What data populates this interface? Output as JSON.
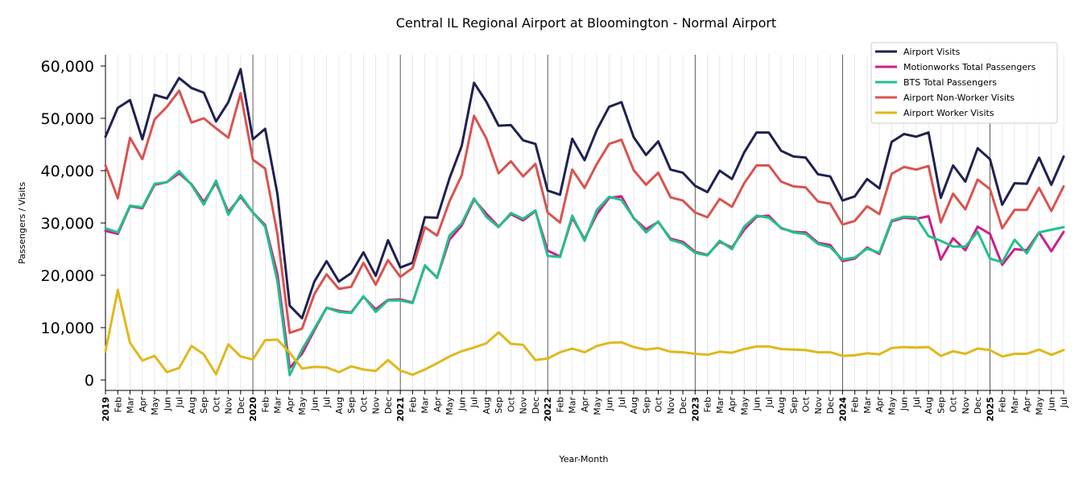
{
  "chart_data": {
    "type": "line",
    "title": "Central IL Regional Airport at Bloomington - Normal Airport",
    "xlabel": "Year-Month",
    "ylabel": "Passengers / Visits",
    "ylim": [
      -2000,
      62000
    ],
    "yticks": [
      0,
      10000,
      20000,
      30000,
      40000,
      50000,
      60000
    ],
    "ytick_labels": [
      "0",
      "10,000",
      "20,000",
      "30,000",
      "40,000",
      "50,000",
      "60,000"
    ],
    "legend_position": "top-right",
    "grid": "vertical monthly gridlines, darker lines at year starts",
    "categories": [
      "2019",
      "Feb",
      "Mar",
      "Apr",
      "May",
      "Jun",
      "Jul",
      "Aug",
      "Sep",
      "Oct",
      "Nov",
      "Dec",
      "2020",
      "Feb",
      "Mar",
      "Apr",
      "May",
      "Jun",
      "Jul",
      "Aug",
      "Sep",
      "Oct",
      "Nov",
      "Dec",
      "2021",
      "Feb",
      "Mar",
      "Apr",
      "May",
      "Jun",
      "Jul",
      "Aug",
      "Sep",
      "Oct",
      "Nov",
      "Dec",
      "2022",
      "Feb",
      "Mar",
      "Apr",
      "May",
      "Jun",
      "Jul",
      "Aug",
      "Sep",
      "Oct",
      "Nov",
      "Dec",
      "2023",
      "Feb",
      "Mar",
      "Apr",
      "May",
      "Jun",
      "Jul",
      "Aug",
      "Sep",
      "Oct",
      "Nov",
      "Dec",
      "2024",
      "Feb",
      "Mar",
      "Apr",
      "May",
      "Jun",
      "Jul",
      "Aug",
      "Sep",
      "Oct",
      "Nov",
      "Dec",
      "2025",
      "Feb",
      "Mar",
      "Apr",
      "May",
      "Jun",
      "Jul"
    ],
    "series": [
      {
        "name": "Airport Visits",
        "color": "#1f2150",
        "values": [
          46500,
          52000,
          53500,
          46000,
          54500,
          53800,
          57700,
          55800,
          54900,
          49400,
          53100,
          59400,
          46000,
          48000,
          35500,
          14200,
          11800,
          18800,
          22700,
          18800,
          20400,
          24400,
          19900,
          26700,
          21500,
          22400,
          31100,
          31000,
          38500,
          44700,
          56800,
          53200,
          48600,
          48700,
          45800,
          45100,
          36200,
          35400,
          46100,
          42000,
          47800,
          52200,
          53100,
          46400,
          43000,
          45600,
          40200,
          39600,
          37100,
          35900,
          40000,
          38400,
          43500,
          47300,
          47300,
          43800,
          42700,
          42500,
          39300,
          38900,
          34300,
          35100,
          38400,
          36600,
          45500,
          47000,
          46500,
          47300,
          34800,
          41000,
          37900,
          44300,
          42200,
          33500,
          37600,
          37500,
          42500,
          37300,
          42700
        ]
      },
      {
        "name": "Motionworks Total Passengers",
        "color": "#cc1f8a",
        "values": [
          28500,
          27900,
          33200,
          32800,
          37300,
          37800,
          39500,
          37400,
          34000,
          37700,
          32100,
          35000,
          32000,
          29600,
          20200,
          2300,
          5000,
          9500,
          13800,
          13200,
          12900,
          15900,
          13500,
          15300,
          15400,
          14800,
          21800,
          19600,
          26800,
          29500,
          34500,
          31800,
          29300,
          31700,
          30500,
          32300,
          24700,
          23600,
          31000,
          26900,
          31700,
          34800,
          35100,
          30900,
          28800,
          30200,
          27000,
          26400,
          24500,
          23900,
          26400,
          25300,
          28700,
          31200,
          31400,
          29000,
          28300,
          28200,
          26200,
          25800,
          22700,
          23200,
          25300,
          24100,
          30300,
          31000,
          30800,
          31300,
          23000,
          27100,
          24800,
          29300,
          27900,
          22000,
          25000,
          24800,
          28200,
          24600,
          28300
        ]
      },
      {
        "name": "BTS Total Passengers",
        "color": "#22c08a",
        "values": [
          29000,
          28200,
          33300,
          33000,
          37500,
          37800,
          39900,
          37300,
          33500,
          38100,
          31600,
          35300,
          32000,
          29300,
          18800,
          900,
          5800,
          9800,
          13800,
          13000,
          12800,
          16000,
          13000,
          15200,
          15200,
          14700,
          21900,
          19500,
          27600,
          29900,
          34700,
          31200,
          29200,
          31900,
          30800,
          32400,
          23700,
          23500,
          31400,
          26600,
          32500,
          35000,
          34400,
          31000,
          28200,
          30300,
          26800,
          26100,
          24300,
          23800,
          26600,
          25000,
          29300,
          31400,
          31000,
          29100,
          28200,
          27900,
          26000,
          25400,
          23000,
          23400,
          25100,
          24300,
          30500,
          31200,
          31100,
          27500,
          26600,
          25500,
          25500,
          28300,
          23200,
          22500,
          26800,
          24200,
          28200,
          28700,
          29200
        ]
      },
      {
        "name": "Airport Non-Worker Visits",
        "color": "#d9534f",
        "values": [
          41000,
          34700,
          46300,
          42200,
          49800,
          52200,
          55300,
          49200,
          50000,
          48100,
          46300,
          54800,
          42100,
          40400,
          27800,
          9000,
          9800,
          16400,
          20200,
          17400,
          17800,
          22400,
          18200,
          22900,
          19700,
          21400,
          29200,
          27600,
          34100,
          39100,
          50500,
          46200,
          39500,
          41800,
          38900,
          41300,
          32000,
          30100,
          40200,
          36700,
          41300,
          45100,
          45900,
          40100,
          37300,
          39600,
          34900,
          34300,
          32000,
          31100,
          34600,
          33100,
          37600,
          41000,
          41000,
          37900,
          37000,
          36800,
          34100,
          33700,
          29700,
          30400,
          33200,
          31700,
          39400,
          40700,
          40200,
          40900,
          30100,
          35600,
          32600,
          38300,
          36500,
          29000,
          32500,
          32500,
          36700,
          32300,
          37000
        ]
      },
      {
        "name": "Airport Worker Visits",
        "color": "#e0b81c",
        "values": [
          5500,
          17200,
          7100,
          3700,
          4600,
          1500,
          2300,
          6500,
          4900,
          1100,
          6800,
          4500,
          3900,
          7600,
          7700,
          5200,
          2200,
          2500,
          2400,
          1500,
          2600,
          2000,
          1700,
          3800,
          1800,
          1000,
          2000,
          3200,
          4500,
          5500,
          6200,
          7000,
          9100,
          6900,
          6700,
          3800,
          4100,
          5300,
          6000,
          5300,
          6500,
          7100,
          7200,
          6300,
          5800,
          6100,
          5400,
          5300,
          5000,
          4800,
          5400,
          5200,
          5900,
          6400,
          6400,
          5900,
          5800,
          5700,
          5300,
          5300,
          4600,
          4700,
          5100,
          4900,
          6100,
          6300,
          6200,
          6300,
          4600,
          5500,
          5000,
          6000,
          5700,
          4500,
          5000,
          5000,
          5800,
          4800,
          5700
        ]
      }
    ]
  }
}
